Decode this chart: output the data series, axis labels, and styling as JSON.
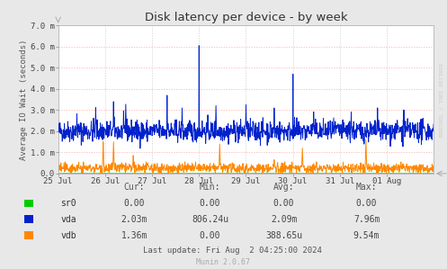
{
  "title": "Disk latency per device - by week",
  "ylabel": "Average IO Wait (seconds)",
  "bg_color": "#e8e8e8",
  "plot_bg_color": "#ffffff",
  "grid_color_h": "#ffaaaa",
  "grid_color_v": "#cccccc",
  "ylim": [
    0.0,
    0.007
  ],
  "yticks": [
    0.0,
    0.001,
    0.002,
    0.003,
    0.004,
    0.005,
    0.006,
    0.007
  ],
  "ytick_labels": [
    "0.0",
    "1.0 m",
    "2.0 m",
    "3.0 m",
    "4.0 m",
    "5.0 m",
    "6.0 m",
    "7.0 m"
  ],
  "xtick_labels": [
    "25 Jul",
    "26 Jul",
    "27 Jul",
    "28 Jul",
    "29 Jul",
    "30 Jul",
    "31 Jul",
    "01 Aug"
  ],
  "colors": {
    "sr0": "#00cc00",
    "vda": "#0022cc",
    "vdb": "#ff8800"
  },
  "legend_items": [
    {
      "label": "sr0",
      "color": "#00cc00"
    },
    {
      "label": "vda",
      "color": "#0022cc"
    },
    {
      "label": "vdb",
      "color": "#ff8800"
    }
  ],
  "table_headers": [
    "Cur:",
    "Min:",
    "Avg:",
    "Max:"
  ],
  "table_data": [
    [
      "sr0",
      "0.00",
      "0.00",
      "0.00",
      "0.00"
    ],
    [
      "vda",
      "2.03m",
      "806.24u",
      "2.09m",
      "7.96m"
    ],
    [
      "vdb",
      "1.36m",
      "0.00",
      "388.65u",
      "9.54m"
    ]
  ],
  "last_update": "Last update: Fri Aug  2 04:25:00 2024",
  "munin_version": "Munin 2.0.67",
  "watermark": "RRDTOOL / TOBI OETIKER",
  "seed": 42
}
